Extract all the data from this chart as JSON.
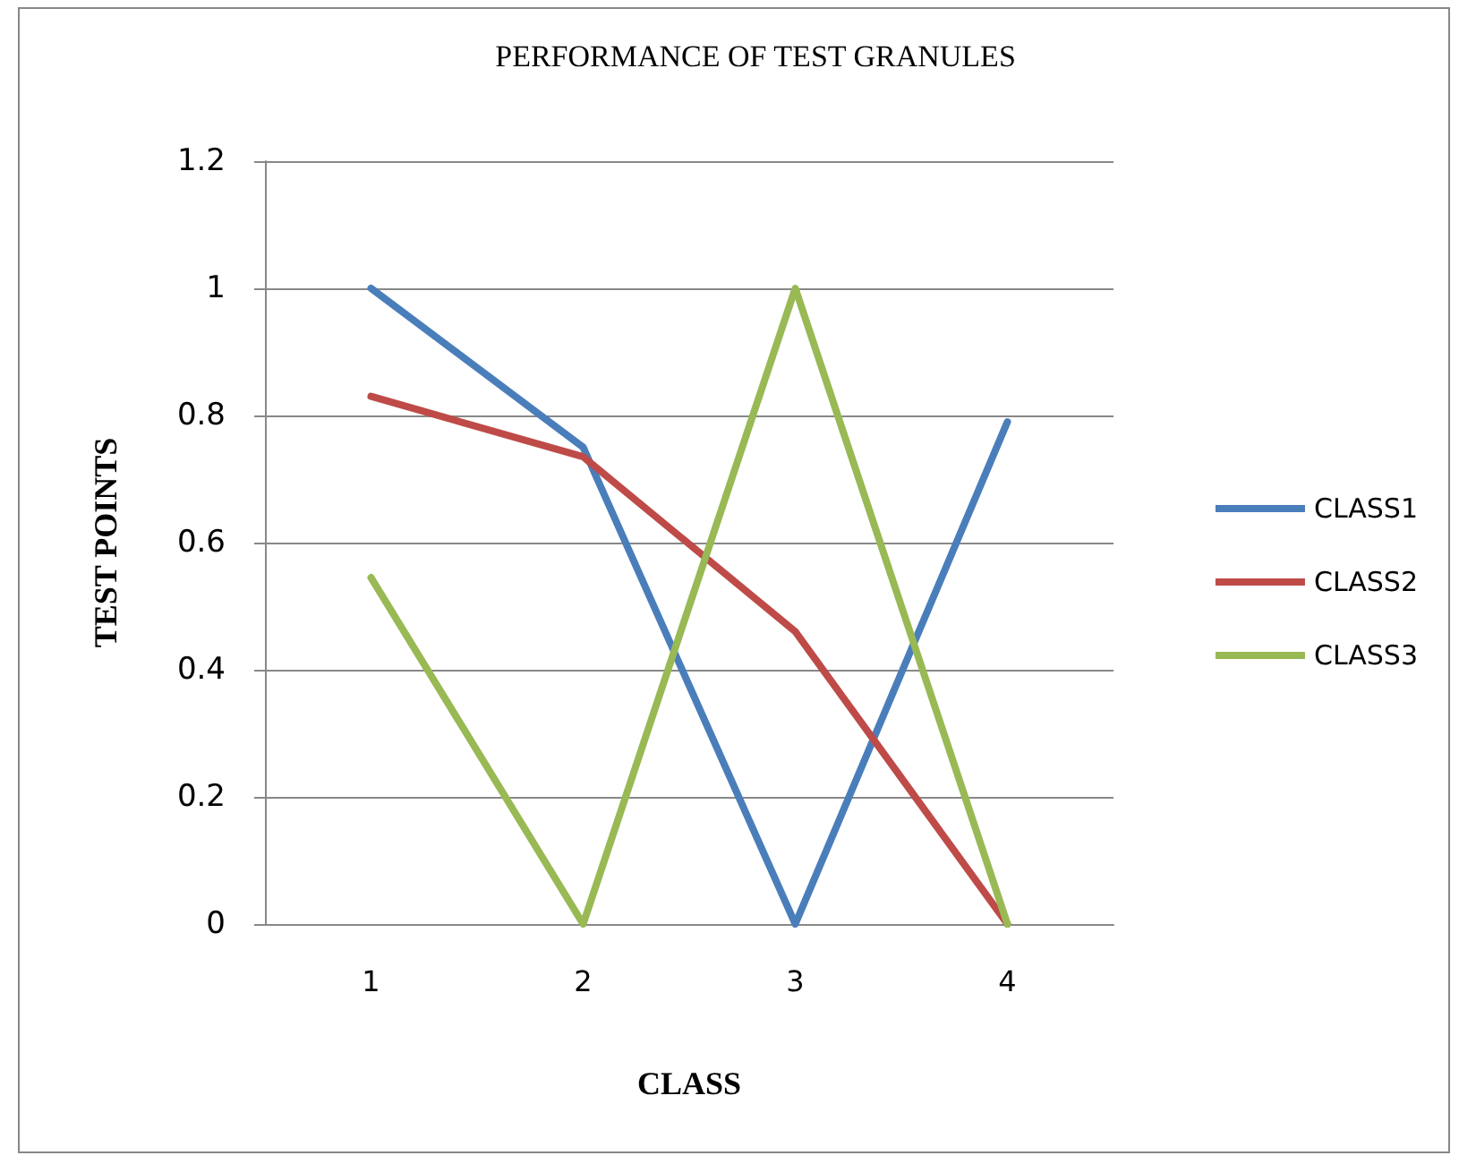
{
  "chart_data": {
    "type": "line",
    "title": "PERFORMANCE OF TEST GRANULES",
    "xlabel": "CLASS",
    "ylabel": "TEST POINTS",
    "categories": [
      "1",
      "2",
      "3",
      "4"
    ],
    "series": [
      {
        "name": "CLASS1",
        "color": "#4a7ebb",
        "values": [
          1,
          0.75,
          0,
          0.79
        ]
      },
      {
        "name": "CLASS2",
        "color": "#be4b48",
        "values": [
          0.83,
          0.735,
          0.46,
          0
        ]
      },
      {
        "name": "CLASS3",
        "color": "#98b954",
        "values": [
          0.545,
          0,
          1,
          0
        ]
      }
    ],
    "ylim": [
      0,
      1.2
    ],
    "yticks": [
      0,
      0.2,
      0.4,
      0.6,
      0.8,
      1,
      1.2
    ],
    "grid": "y",
    "legend": "right",
    "marker": "none",
    "line_style": "solid"
  }
}
